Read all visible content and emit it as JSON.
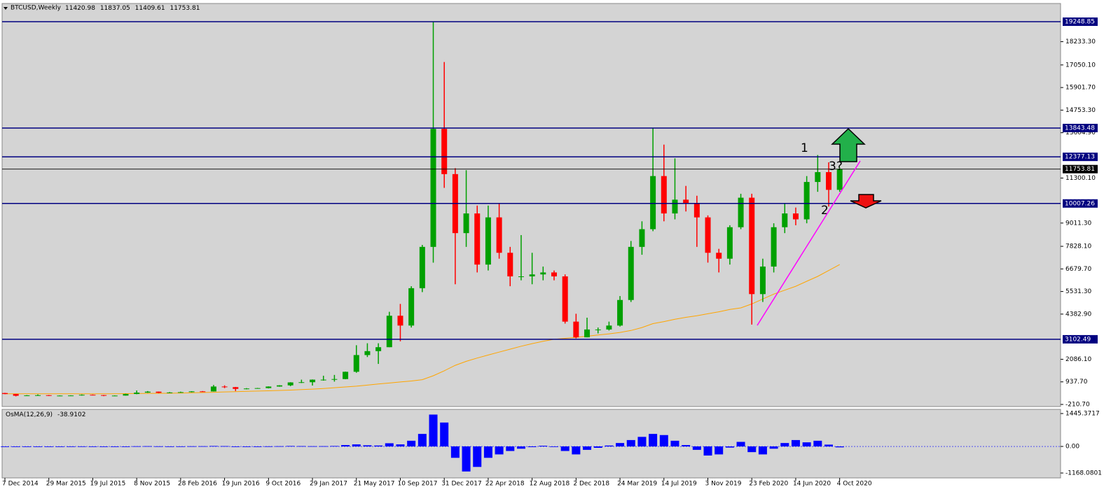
{
  "chart_data": [
    {
      "type": "candlestick",
      "title": "BTCUSD,Weekly",
      "title_values": [
        11420.98,
        11837.05,
        11409.61,
        11753.81
      ],
      "categories": [
        "7 Dec 2014",
        null,
        null,
        null,
        "29 Mar 2015",
        null,
        null,
        null,
        "19 Jul 2015",
        null,
        null,
        null,
        "8 Nov 2015",
        null,
        null,
        null,
        "28 Feb 2016",
        null,
        null,
        null,
        "19 Jun 2016",
        null,
        null,
        null,
        "9 Oct 2016",
        null,
        null,
        null,
        "29 Jan 2017",
        null,
        null,
        null,
        "21 May 2017",
        null,
        null,
        null,
        "10 Sep 2017",
        null,
        null,
        null,
        "31 Dec 2017",
        null,
        null,
        null,
        "22 Apr 2018",
        null,
        null,
        null,
        "12 Aug 2018",
        null,
        null,
        null,
        "2 Dec 2018",
        null,
        null,
        null,
        "24 Mar 2019",
        null,
        null,
        null,
        "14 Jul 2019",
        null,
        null,
        null,
        "3 Nov 2019",
        null,
        null,
        null,
        "23 Feb 2020",
        null,
        null,
        null,
        "14 Jun 2020",
        null,
        null,
        null,
        "4 Oct 2020"
      ],
      "open": [
        370,
        320,
        230,
        250,
        260,
        225,
        240,
        245,
        280,
        265,
        235,
        240,
        320,
        390,
        440,
        380,
        400,
        415,
        455,
        450,
        700,
        670,
        580,
        600,
        620,
        700,
        760,
        910,
        920,
        1050,
        1050,
        1080,
        1450,
        2300,
        2500,
        2700,
        4300,
        3800,
        5700,
        7800,
        13800,
        11500,
        8500,
        9500,
        6900,
        9300,
        7500,
        6300,
        6300,
        6400,
        6500,
        6300,
        4000,
        3200,
        3600,
        3600,
        3800,
        5100,
        7800,
        8700,
        11400,
        9500,
        10200,
        10000,
        9300,
        7500,
        7200,
        8800,
        10300,
        5400,
        6800,
        8800,
        9500,
        9200,
        11100,
        11600,
        10700
      ],
      "high": [
        380,
        325,
        265,
        300,
        265,
        250,
        255,
        300,
        295,
        270,
        250,
        335,
        500,
        470,
        445,
        420,
        440,
        465,
        470,
        780,
        760,
        680,
        620,
        630,
        710,
        770,
        920,
        1050,
        1060,
        1250,
        1290,
        1460,
        2800,
        2900,
        2900,
        4500,
        4900,
        5800,
        7900,
        19249,
        17200,
        11800,
        11700,
        9900,
        9900,
        10000,
        7800,
        8400,
        7500,
        6800,
        6600,
        6400,
        4400,
        4200,
        3700,
        4000,
        5300,
        8100,
        9100,
        13843,
        13000,
        12300,
        10900,
        10400,
        9400,
        7700,
        8900,
        10500,
        10500,
        7200,
        9000,
        10000,
        9800,
        11400,
        12470,
        12100,
        11837.05
      ],
      "low": [
        310,
        200,
        220,
        240,
        215,
        215,
        225,
        240,
        255,
        210,
        225,
        235,
        310,
        380,
        360,
        370,
        395,
        405,
        440,
        445,
        620,
        470,
        560,
        590,
        605,
        690,
        720,
        880,
        750,
        1000,
        950,
        1070,
        1400,
        2200,
        1850,
        2700,
        3000,
        3700,
        5500,
        7000,
        10800,
        5900,
        7800,
        6500,
        6600,
        7200,
        5800,
        6100,
        5900,
        6100,
        6100,
        3900,
        3150,
        3200,
        3400,
        3550,
        3750,
        5000,
        7400,
        8600,
        9100,
        9200,
        9600,
        7800,
        7000,
        6500,
        6900,
        8700,
        3850,
        5000,
        6500,
        8500,
        8900,
        9000,
        10600,
        9850,
        10600
      ],
      "close": [
        320,
        230,
        250,
        260,
        225,
        240,
        245,
        280,
        265,
        235,
        240,
        320,
        390,
        440,
        380,
        400,
        415,
        455,
        450,
        700,
        670,
        580,
        600,
        620,
        700,
        760,
        910,
        920,
        1050,
        1050,
        1080,
        1450,
        2300,
        2500,
        2700,
        4300,
        3800,
        5700,
        7800,
        13800,
        11500,
        8500,
        9500,
        6900,
        9300,
        7500,
        6300,
        6300,
        6400,
        6500,
        6300,
        4000,
        3200,
        3600,
        3600,
        3800,
        5100,
        7800,
        8700,
        11400,
        9500,
        10200,
        10000,
        9300,
        7500,
        7200,
        8800,
        10300,
        5400,
        6800,
        8800,
        9500,
        9200,
        11100,
        11600,
        10700,
        11753.81
      ],
      "up_color": "#00a000",
      "down_color": "#ff0000",
      "moving_average": {
        "color": "#ffa500",
        "values": [
          330,
          330,
          330,
          330,
          330,
          330,
          330,
          330,
          330,
          335,
          335,
          340,
          345,
          350,
          355,
          360,
          370,
          380,
          395,
          410,
          425,
          440,
          455,
          470,
          485,
          500,
          520,
          545,
          570,
          600,
          640,
          680,
          720,
          770,
          830,
          880,
          930,
          980,
          1050,
          1250,
          1500,
          1780,
          1980,
          2150,
          2300,
          2450,
          2600,
          2750,
          2880,
          3000,
          3100,
          3150,
          3200,
          3260,
          3320,
          3380,
          3450,
          3550,
          3700,
          3900,
          4000,
          4120,
          4220,
          4300,
          4400,
          4500,
          4620,
          4700,
          4900,
          5150,
          5400,
          5600,
          5800,
          6050,
          6300,
          6600,
          6900
        ]
      },
      "ylim": [
        -317,
        20174
      ],
      "yticks": [
        {
          "value": 18233.3,
          "label": "18233.30"
        },
        {
          "value": 17050.1,
          "label": "17050.10"
        },
        {
          "value": 15901.7,
          "label": "15901.70"
        },
        {
          "value": 14753.3,
          "label": "14753.30"
        },
        {
          "value": 13604.9,
          "label": "13604.90"
        },
        {
          "value": 11300.1,
          "label": "11300.10"
        },
        {
          "value": 9011.3,
          "label": "9011.30"
        },
        {
          "value": 7828.1,
          "label": "7828.10"
        },
        {
          "value": 6679.7,
          "label": "6679.70"
        },
        {
          "value": 5531.3,
          "label": "5531.30"
        },
        {
          "value": 4382.9,
          "label": "4382.90"
        },
        {
          "value": 2086.1,
          "label": "2086.10"
        },
        {
          "value": 937.7,
          "label": "937.70"
        },
        {
          "value": -210.7,
          "label": "-210.70"
        }
      ],
      "levels": [
        19248.85,
        13843.48,
        12377.13,
        10007.26,
        3102.49
      ],
      "level_color": "#000080",
      "current_price": 11753.81,
      "annotations": [
        "1",
        "2",
        "3?"
      ]
    },
    {
      "type": "histogram",
      "title": "OsMA(12,26,9)",
      "title_value": -38.9102,
      "color": "#0000ff",
      "values": [
        -5,
        -8,
        -6,
        -3,
        -2,
        0,
        2,
        3,
        1,
        -2,
        -3,
        0,
        8,
        12,
        6,
        2,
        3,
        8,
        10,
        20,
        15,
        -5,
        -8,
        -3,
        5,
        10,
        20,
        15,
        10,
        12,
        20,
        60,
        90,
        50,
        40,
        140,
        90,
        250,
        550,
        1400,
        1050,
        -500,
        -1100,
        -900,
        -500,
        -350,
        -200,
        -100,
        -30,
        30,
        -20,
        -200,
        -350,
        -150,
        -60,
        40,
        150,
        280,
        420,
        550,
        500,
        250,
        60,
        -150,
        -400,
        -350,
        -50,
        200,
        -250,
        -350,
        -100,
        150,
        280,
        180,
        250,
        80,
        -38.9102
      ],
      "ylim": [
        -1383,
        1630
      ],
      "yticks": [
        1445.3717,
        {
          "value": 0,
          "label": "0.00"
        },
        -1168.0801
      ]
    }
  ]
}
